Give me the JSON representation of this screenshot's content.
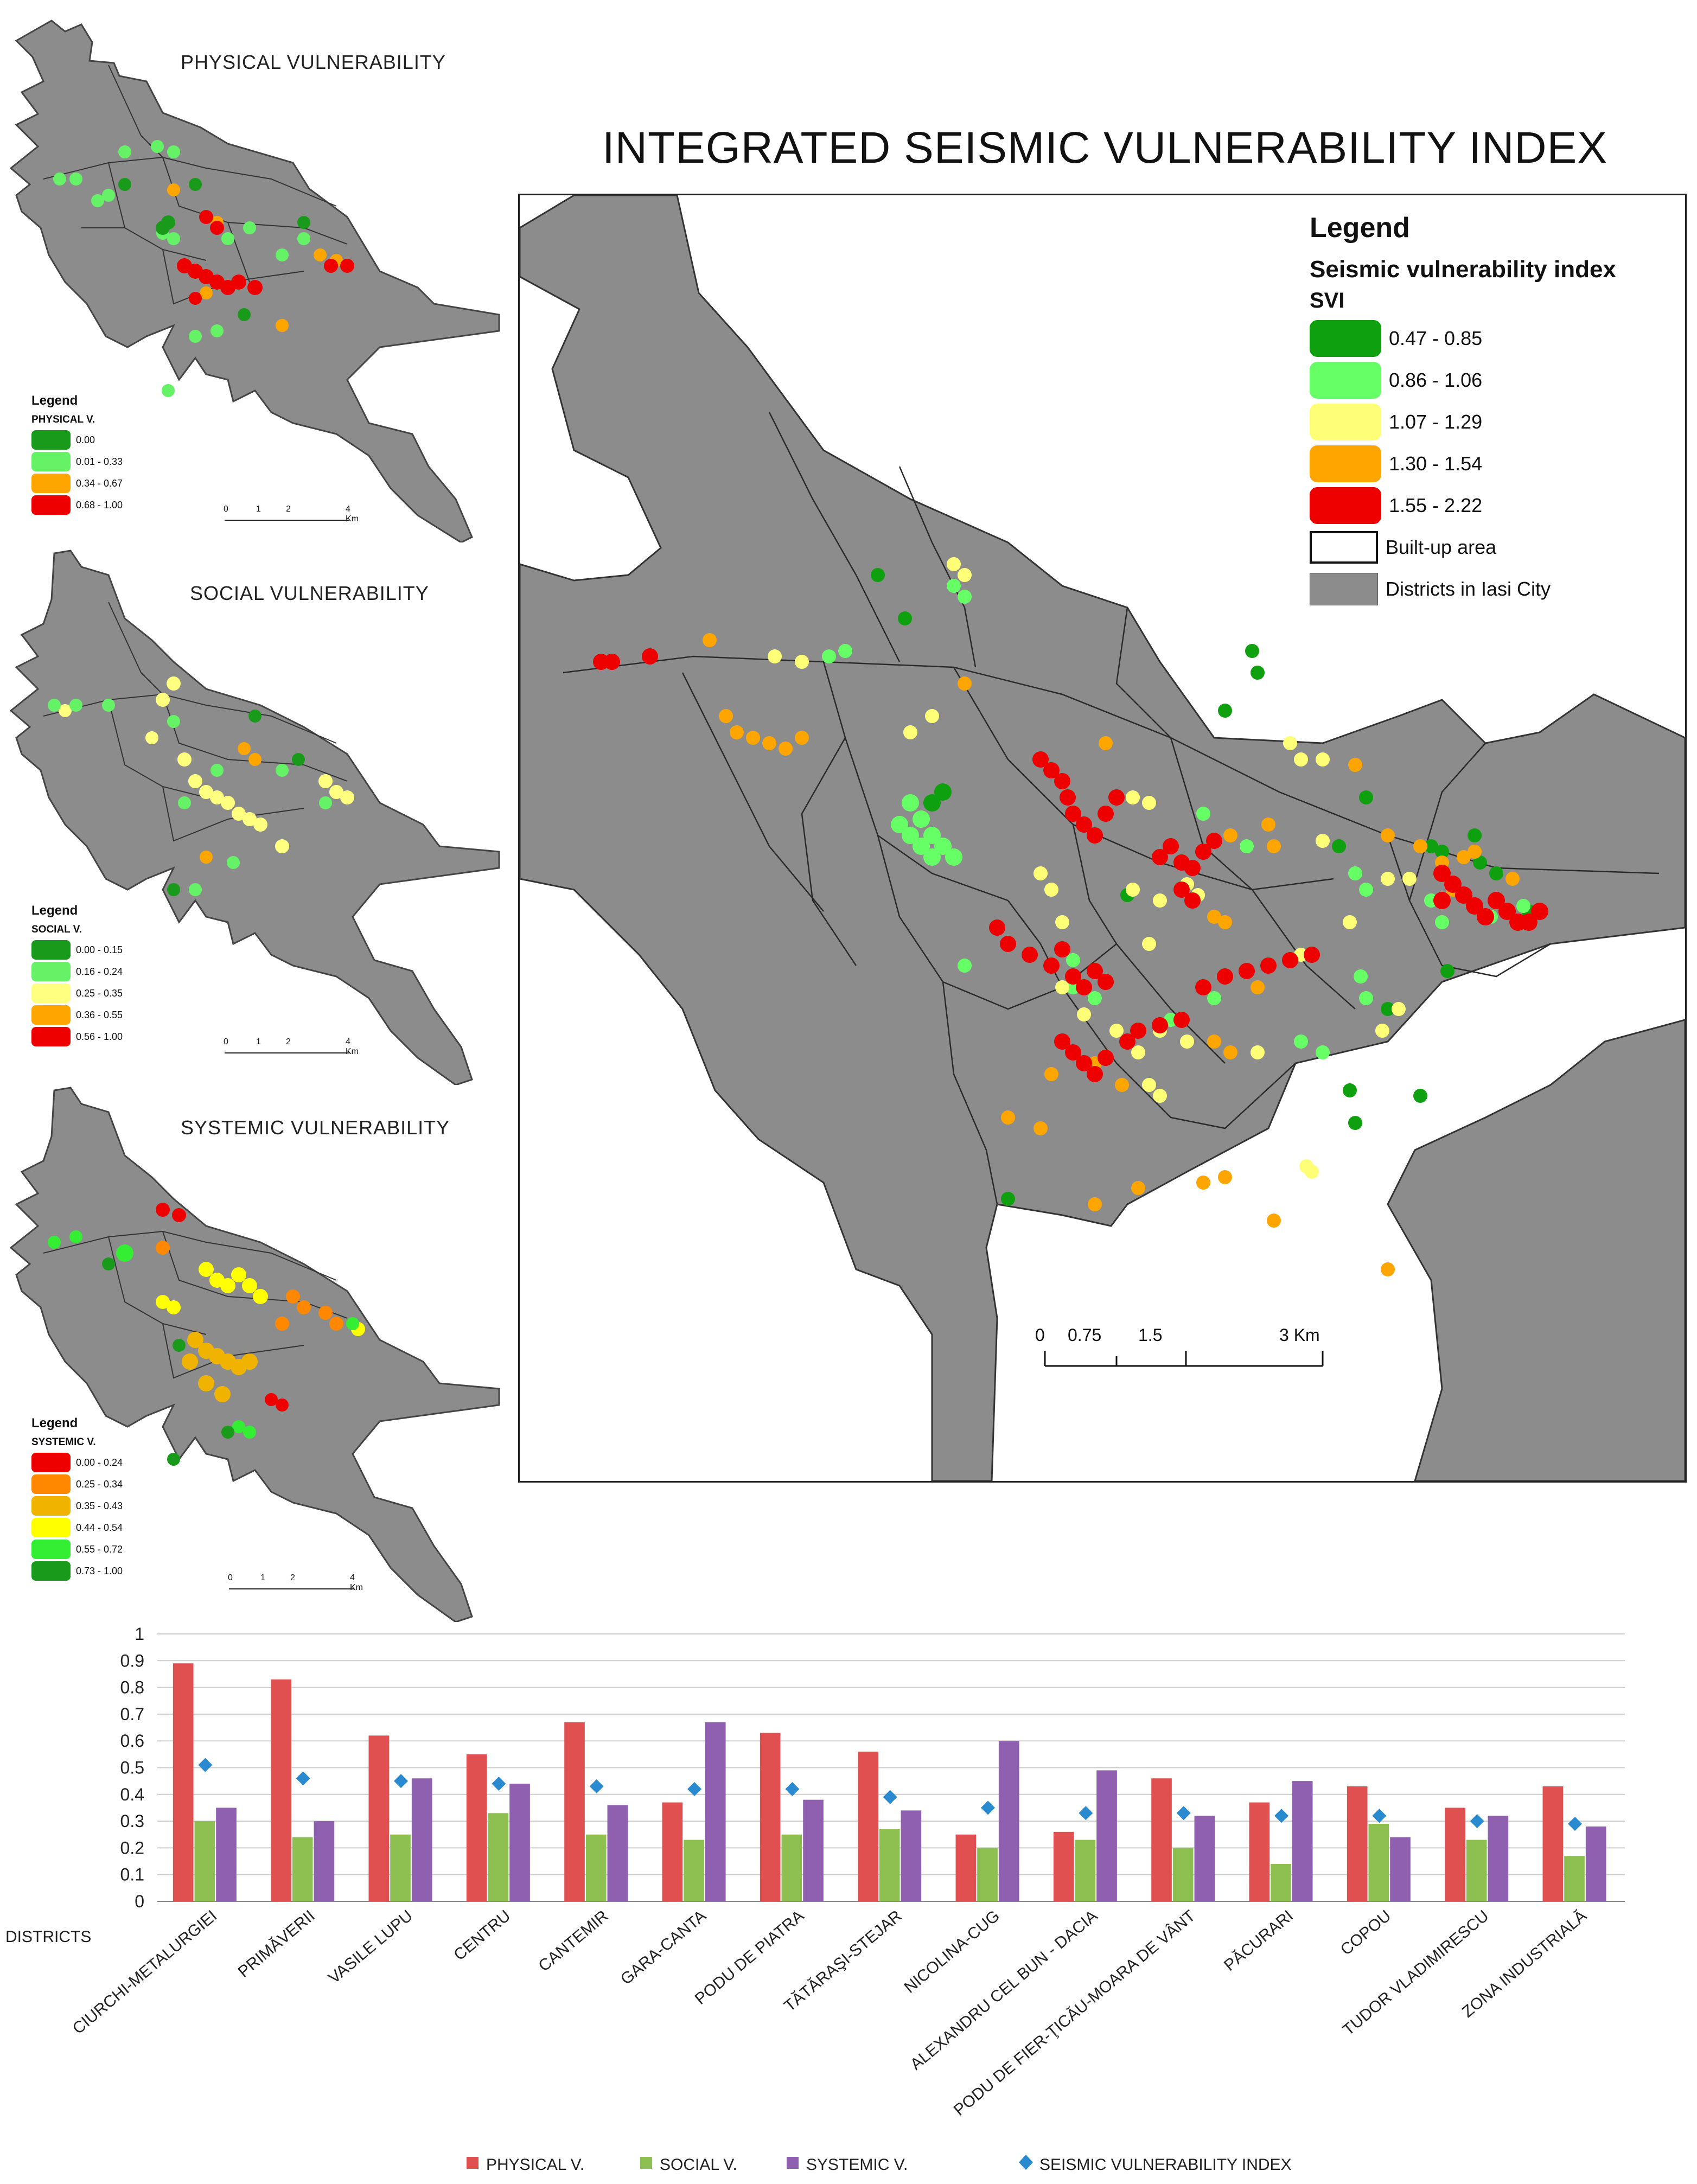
{
  "main_title": "INTEGRATED SEISMIC VULNERABILITY INDEX",
  "small_maps": [
    {
      "title": "PHYSICAL  VULNERABILITY",
      "legend_title": "Legend",
      "legend_subtitle": "PHYSICAL  V.",
      "classes": [
        {
          "label": "0.00",
          "color": "#1a9a1a"
        },
        {
          "label": "0.01 - 0.33",
          "color": "#66f266"
        },
        {
          "label": "0.34 - 0.67",
          "color": "#ffa500"
        },
        {
          "label": "0.68 - 1.00",
          "color": "#ee0000"
        }
      ],
      "scale_labels": [
        "0",
        "1",
        "2",
        "4 Km"
      ]
    },
    {
      "title": "SOCIAL  VULNERABILITY",
      "legend_title": "Legend",
      "legend_subtitle": "SOCIAL  V.",
      "classes": [
        {
          "label": "0.00 - 0.15",
          "color": "#1a9a1a"
        },
        {
          "label": "0.16 - 0.24",
          "color": "#66f266"
        },
        {
          "label": "0.25 - 0.35",
          "color": "#ffff80"
        },
        {
          "label": "0.36 - 0.55",
          "color": "#ffa500"
        },
        {
          "label": "0.56 - 1.00",
          "color": "#ee0000"
        }
      ],
      "scale_labels": [
        "0",
        "1",
        "2",
        "4 Km"
      ]
    },
    {
      "title": "SYSTEMIC  VULNERABILITY",
      "legend_title": "Legend",
      "legend_subtitle": "SYSTEMIC V.",
      "classes": [
        {
          "label": "0.00 - 0.24",
          "color": "#ee0000"
        },
        {
          "label": "0.25 - 0.34",
          "color": "#ff8800"
        },
        {
          "label": "0.35 - 0.43",
          "color": "#f0b400"
        },
        {
          "label": "0.44 - 0.54",
          "color": "#ffff00"
        },
        {
          "label": "0.55 - 0.72",
          "color": "#33ee33"
        },
        {
          "label": "0.73 - 1.00",
          "color": "#1a9a1a"
        }
      ],
      "scale_labels": [
        "0",
        "1",
        "2",
        "4 Km"
      ]
    }
  ],
  "main_map": {
    "legend_title": "Legend",
    "legend_subtitle": "Seismic vulnerability index",
    "legend_field": "SVI",
    "classes": [
      {
        "label": "0.47 - 0.85",
        "color": "#0fa00f"
      },
      {
        "label": "0.86 - 1.06",
        "color": "#66ff66"
      },
      {
        "label": "1.07 - 1.29",
        "color": "#ffff77"
      },
      {
        "label": "1.30 - 1.54",
        "color": "#ffa500"
      },
      {
        "label": "1.55 - 2.22",
        "color": "#ee0000"
      }
    ],
    "built_up_label": "Built-up area",
    "districts_label": "Districts in Iasi City",
    "district_fill": "#8c8c8c",
    "scale_labels": [
      "0",
      "0.75",
      "1.5",
      "3 Km"
    ]
  },
  "chart_data": {
    "type": "bar",
    "xlabel": "DISTRICTS",
    "ylim": [
      0,
      1
    ],
    "yticks": [
      "0",
      "0.1",
      "0.2",
      "0.3",
      "0.4",
      "0.5",
      "0.6",
      "0.7",
      "0.8",
      "0.9",
      "1"
    ],
    "categories": [
      "CIURCHI-METALURGIEI",
      "PRIMĂVERII",
      "VASILE LUPU",
      "CENTRU",
      "CANTEMIR",
      "GARA-CANTA",
      "PODU DE PIATRA",
      "TĂTĂRAŞI-STEJAR",
      "NICOLINA-CUG",
      "ALEXANDRU CEL BUN - DACIA",
      "PODU DE FIER-ŢICĂU-MOARA DE VÂNT",
      "PĂCURARI",
      "COPOU",
      "TUDOR VLADIMIRESCU",
      "ZONA INDUSTRIALĂ"
    ],
    "series": [
      {
        "name": "PHYSICAL V.",
        "kind": "bar",
        "color": "#e05050",
        "values": [
          0.89,
          0.83,
          0.62,
          0.55,
          0.67,
          0.37,
          0.63,
          0.56,
          0.25,
          0.26,
          0.46,
          0.37,
          0.43,
          0.35,
          0.43
        ]
      },
      {
        "name": "SOCIAL V.",
        "kind": "bar",
        "color": "#8dc050",
        "values": [
          0.3,
          0.24,
          0.25,
          0.33,
          0.25,
          0.23,
          0.25,
          0.27,
          0.2,
          0.23,
          0.2,
          0.14,
          0.29,
          0.23,
          0.17
        ]
      },
      {
        "name": "SYSTEMIC V.",
        "kind": "bar",
        "color": "#9060b0",
        "values": [
          0.35,
          0.3,
          0.46,
          0.44,
          0.36,
          0.67,
          0.38,
          0.34,
          0.6,
          0.49,
          0.32,
          0.45,
          0.24,
          0.32,
          0.28
        ]
      },
      {
        "name": "SEISMIC VULNERABILITY INDEX",
        "kind": "marker",
        "color": "#2a8ad0",
        "values": [
          0.51,
          0.46,
          0.45,
          0.44,
          0.43,
          0.42,
          0.42,
          0.39,
          0.35,
          0.33,
          0.33,
          0.32,
          0.32,
          0.3,
          0.29
        ]
      }
    ],
    "legend_placement": "bottom",
    "grid": true
  }
}
